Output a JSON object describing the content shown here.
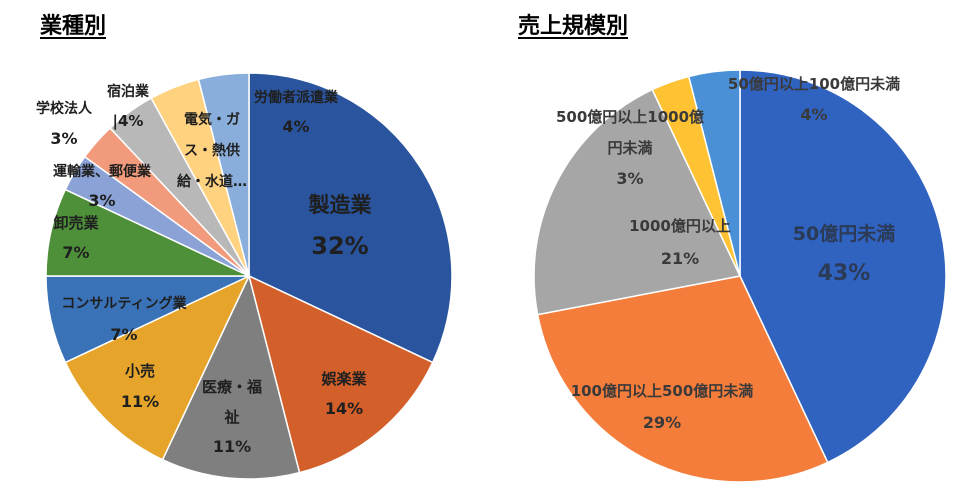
{
  "chart_data": [
    {
      "type": "pie",
      "title": "業種別",
      "slices": [
        {
          "label": "製造業",
          "value": 32,
          "pct": "32%",
          "color": "#2a559e"
        },
        {
          "label": "娯楽業",
          "value": 14,
          "pct": "14%",
          "color": "#d35f2a"
        },
        {
          "label": "医療・福祉",
          "value": 11,
          "pct": "11%",
          "color": "#7f7f7f"
        },
        {
          "label": "小売",
          "value": 11,
          "pct": "11%",
          "color": "#e6a52a"
        },
        {
          "label": "コンサルティング業",
          "value": 7,
          "pct": "7%",
          "color": "#3a72b8"
        },
        {
          "label": "卸売業",
          "value": 7,
          "pct": "7%",
          "color": "#4e8f3a"
        },
        {
          "label": "運輸業、郵便業",
          "value": 3,
          "pct": "3%",
          "color": "#8aa2d6"
        },
        {
          "label": "学校法人",
          "value": 3,
          "pct": "3%",
          "color": "#f29a7c"
        },
        {
          "label": "宿泊業",
          "value": 4,
          "pct": "4%",
          "color": "#b8b8b8"
        },
        {
          "label": "電気・ガス・熱供給・水道…",
          "value": 4,
          "pct": "",
          "color": "#ffd27f"
        },
        {
          "label": "労働者派遣業",
          "value": 4,
          "pct": "4%",
          "color": "#8aaedc"
        }
      ]
    },
    {
      "type": "pie",
      "title": "売上規模別",
      "slices": [
        {
          "label": "50億円未満",
          "value": 43,
          "pct": "43%",
          "color": "#3062c0"
        },
        {
          "label": "100億円以上500億円未満",
          "value": 29,
          "pct": "29%",
          "color": "#f57d3c"
        },
        {
          "label": "1000億円以上",
          "value": 21,
          "pct": "21%",
          "color": "#a6a6a6"
        },
        {
          "label": "500億円以上1000億円未満",
          "value": 3,
          "pct": "3%",
          "color": "#ffc233"
        },
        {
          "label": "50億円以上100億円未満",
          "value": 4,
          "pct": "4%",
          "color": "#4a90d6"
        }
      ]
    }
  ]
}
